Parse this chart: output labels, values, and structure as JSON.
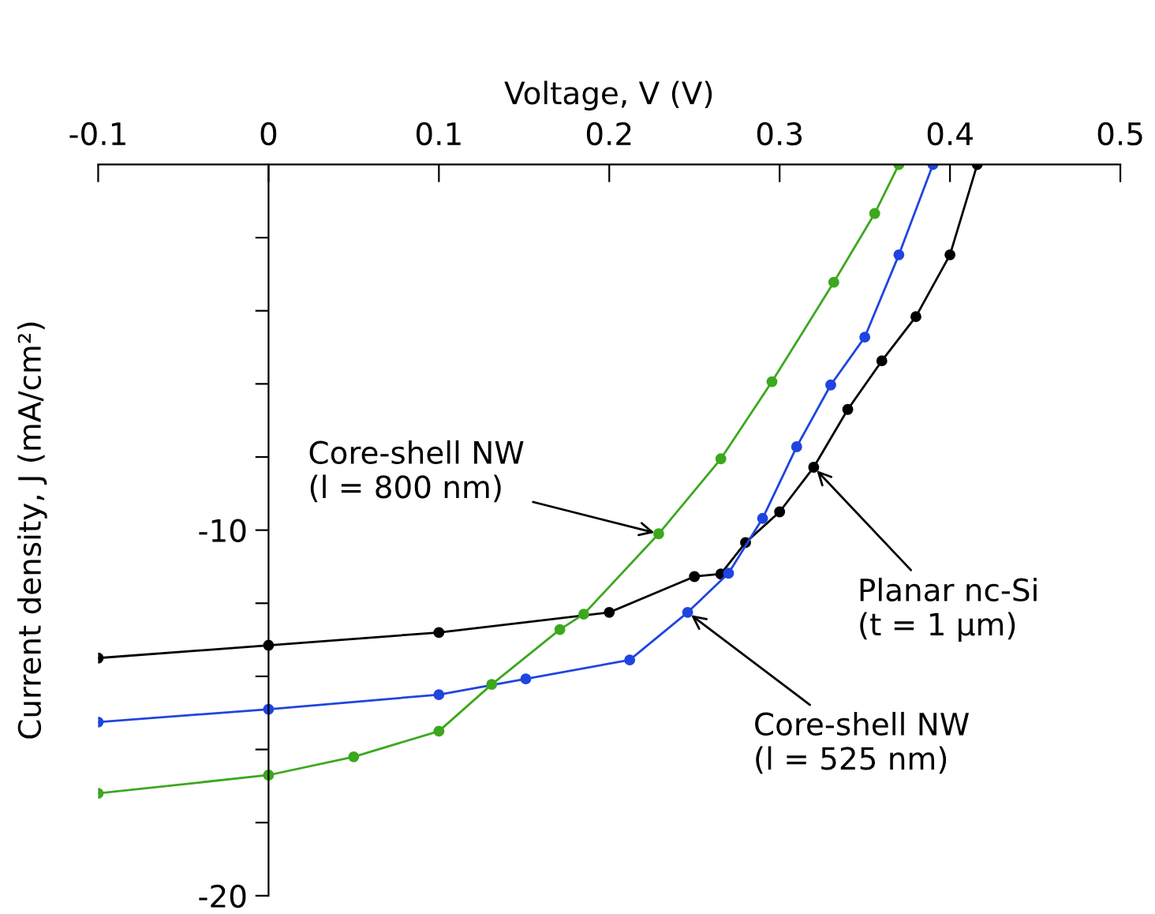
{
  "chart_data": {
    "type": "line",
    "xlabel": "Voltage, V (V)",
    "ylabel": "Current density, J (mA/cm²)",
    "xlim": [
      -0.1,
      0.5
    ],
    "xticks": [
      -0.1,
      0,
      0.1,
      0.2,
      0.3,
      0.4,
      0.5
    ],
    "ylim": [
      -20,
      0
    ],
    "yticks": [
      {
        "value": -2,
        "label": null
      },
      {
        "value": -4,
        "label": null
      },
      {
        "value": -6,
        "label": null
      },
      {
        "value": -8,
        "label": null
      },
      -10,
      {
        "value": -12,
        "label": null
      },
      {
        "value": -14,
        "label": null
      },
      {
        "value": -16,
        "label": null
      },
      {
        "value": -18,
        "label": null
      },
      -20
    ],
    "marker": "circle",
    "line_style": "solid",
    "grid": false,
    "legend": false,
    "series": [
      {
        "color": "#000000",
        "x": [
          -0.1,
          0,
          0.1,
          0.2,
          0.25,
          0.2655,
          0.28,
          0.3,
          0.32,
          0.34,
          0.36,
          0.38,
          0.4,
          0.416
        ],
        "values": [
          -13.5,
          -13.15,
          -12.8,
          -12.25,
          -11.27,
          -11.2,
          -10.34,
          -9.5,
          -8.28,
          -6.7,
          -5.37,
          -4.16,
          -2.47,
          0
        ]
      },
      {
        "color": "#1f45e0",
        "x": [
          -0.1,
          0,
          0.1,
          0.151,
          0.212,
          0.246,
          0.27,
          0.29,
          0.31,
          0.33,
          0.35,
          0.37,
          0.39
        ],
        "values": [
          -15.25,
          -14.9,
          -14.5,
          -14.07,
          -13.55,
          -12.25,
          -11.18,
          -9.68,
          -7.72,
          -6.03,
          -4.72,
          -2.47,
          0
        ]
      },
      {
        "color": "#3ca81e",
        "x": [
          -0.1,
          0,
          0.05,
          0.1,
          0.131,
          0.171,
          0.185,
          0.229,
          0.2655,
          0.2955,
          0.3318,
          0.3558,
          0.37
        ],
        "values": [
          -17.2,
          -16.7,
          -16.2,
          -15.5,
          -14.22,
          -12.72,
          -12.3,
          -10.1,
          -8.05,
          -5.94,
          -3.22,
          -1.34,
          0
        ]
      }
    ],
    "annotations": [
      {
        "text": "Core-shell NW\n(l = 800 nm)",
        "x": 0.229,
        "y": -10.1
      },
      {
        "text": "Planar nc-Si\n(t = 1 μm)",
        "x": 0.32,
        "y": -8.28
      },
      {
        "text": "Core-shell NW\n(l = 525 nm)",
        "x": 0.246,
        "y": -12.25
      }
    ]
  }
}
